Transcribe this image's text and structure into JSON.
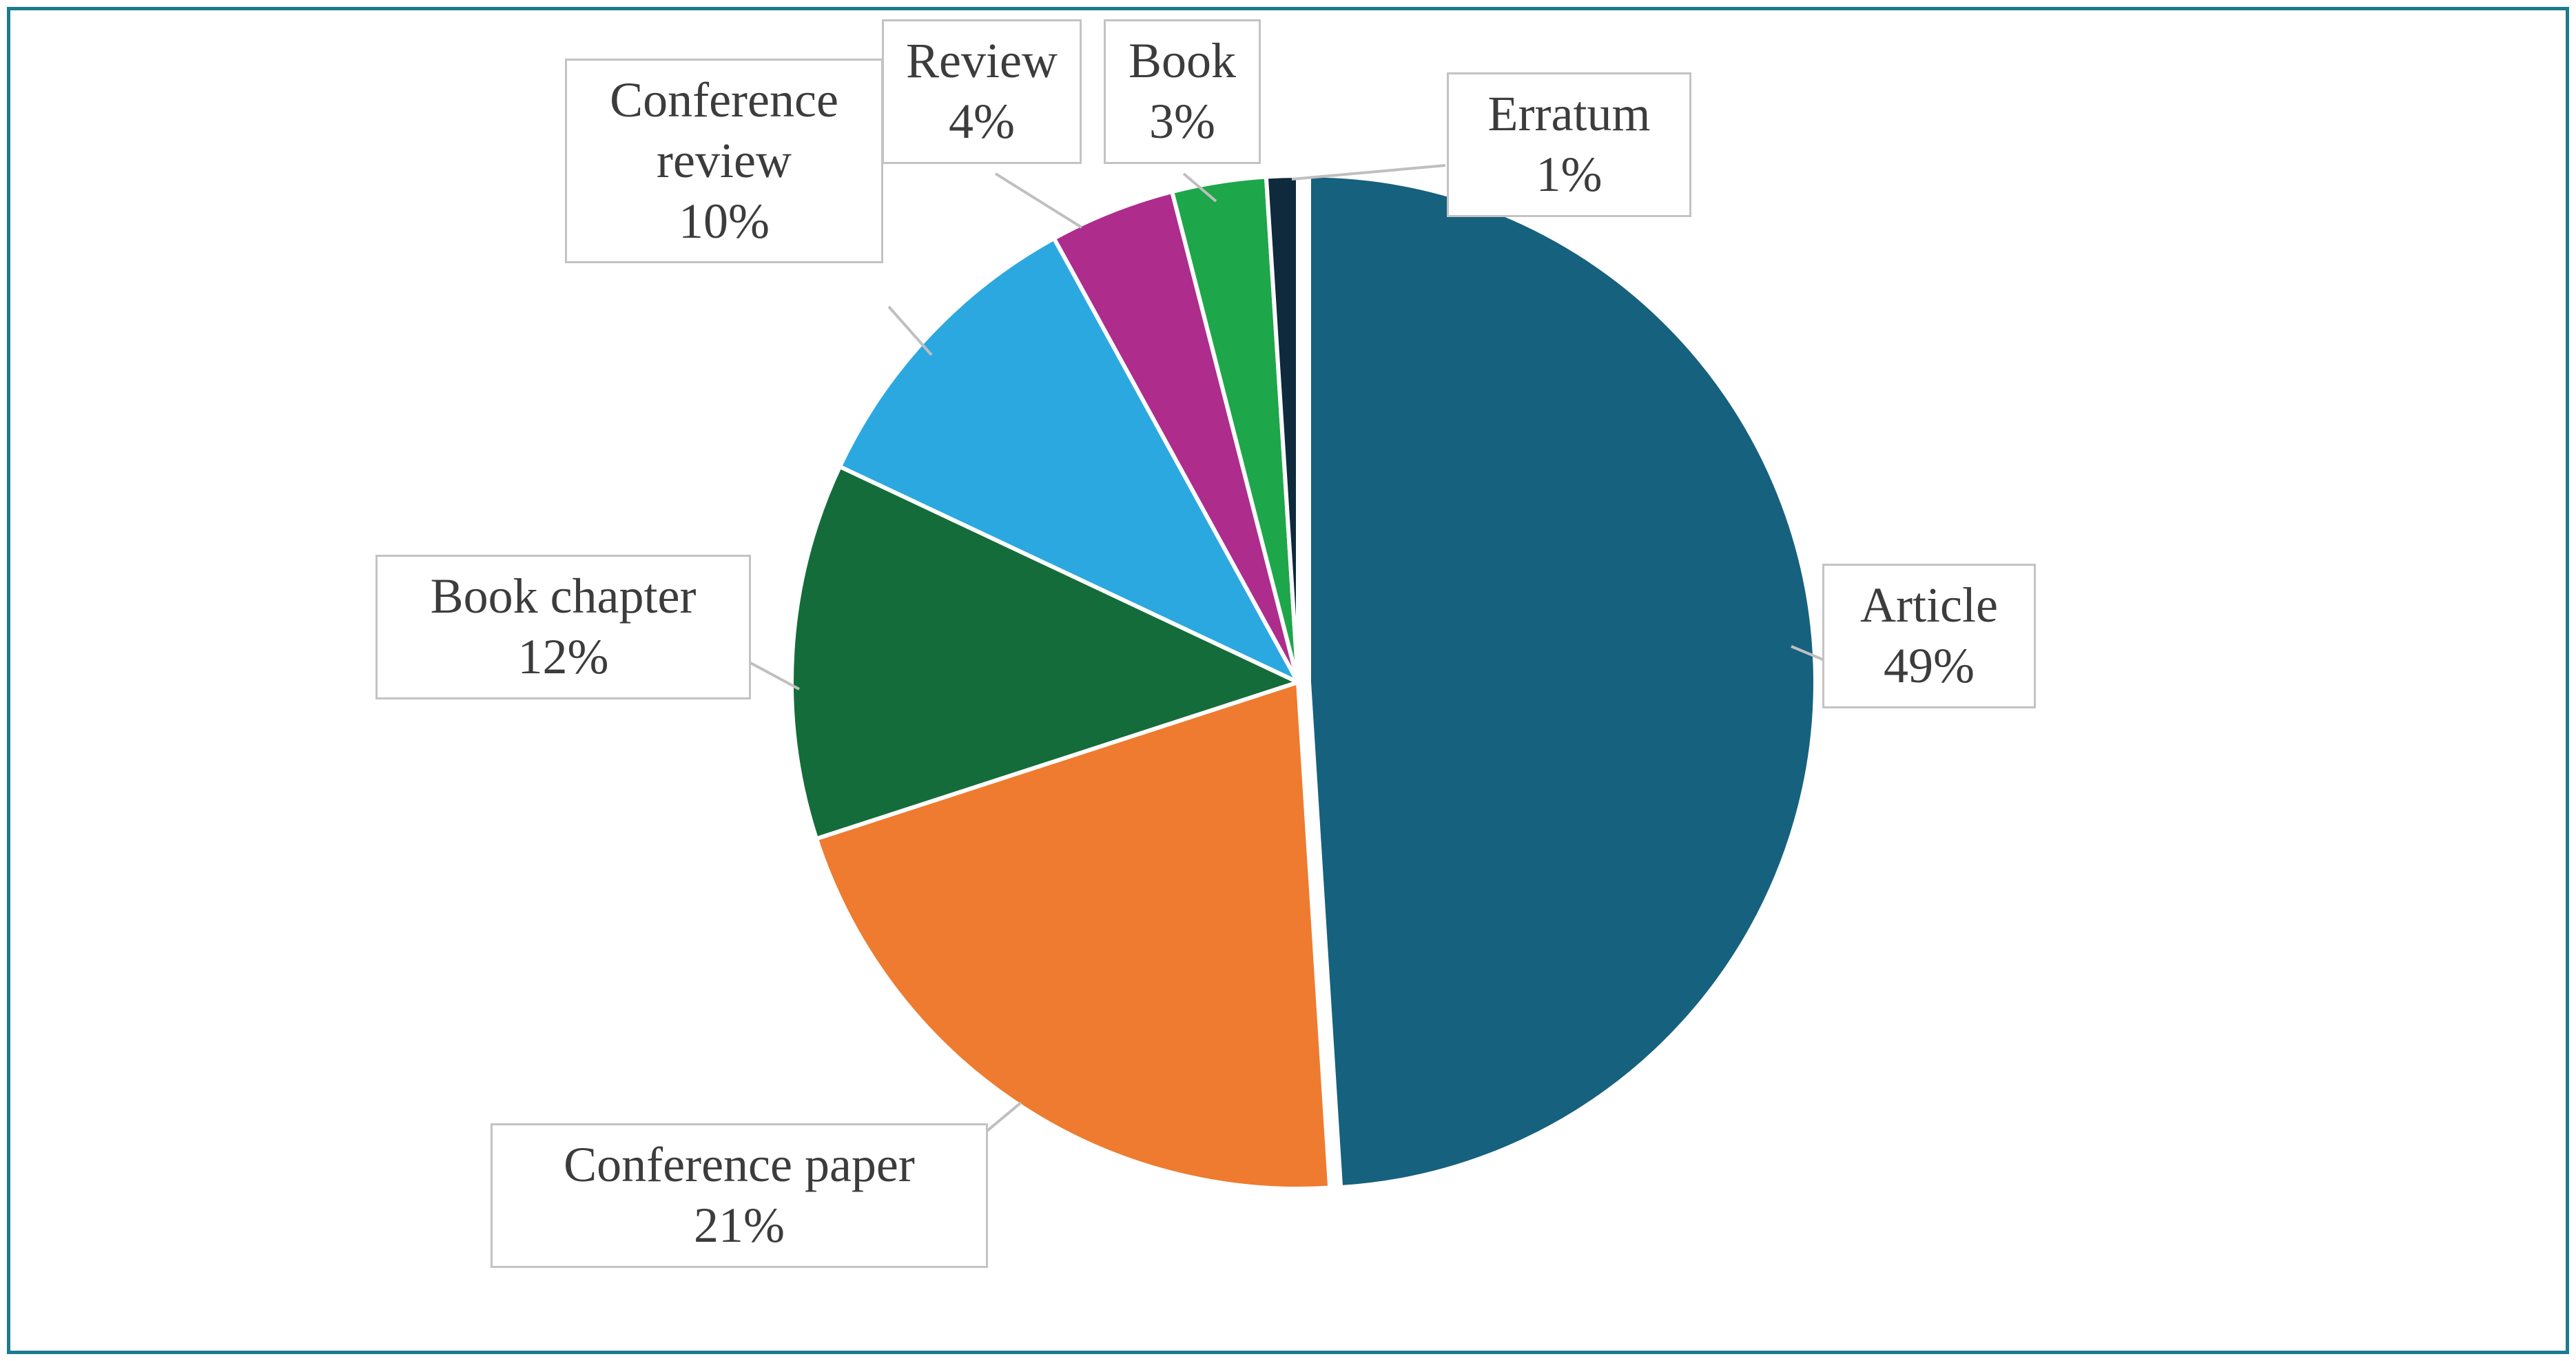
{
  "figure": {
    "border_color": "#1d7b90",
    "background_color": "#ffffff",
    "callout_border_color": "#c3c3c3",
    "text_color": "#3c3c3c"
  },
  "chart_data": {
    "type": "pie",
    "title": "",
    "start_angle_deg": -90,
    "direction": "clockwise",
    "total": 100,
    "legend_position": "callouts",
    "grid": false,
    "slices": [
      {
        "label": "Article",
        "value": 49,
        "pct": "49%",
        "color": "#16617e",
        "exploded": true
      },
      {
        "label": "Conference paper",
        "value": 21,
        "pct": "21%",
        "color": "#ee7b30",
        "exploded": false
      },
      {
        "label": "Book chapter",
        "value": 12,
        "pct": "12%",
        "color": "#156c3b",
        "exploded": false
      },
      {
        "label": "Conference review",
        "value": 10,
        "pct": "10%",
        "color": "#2ca8e0",
        "exploded": false
      },
      {
        "label": "Review",
        "value": 4,
        "pct": "4%",
        "color": "#ae2c8c",
        "exploded": false
      },
      {
        "label": "Book",
        "value": 3,
        "pct": "3%",
        "color": "#1ea64a",
        "exploded": false
      },
      {
        "label": "Erratum",
        "value": 1,
        "pct": "1%",
        "color": "#0e2a3c",
        "exploded": false
      }
    ]
  }
}
